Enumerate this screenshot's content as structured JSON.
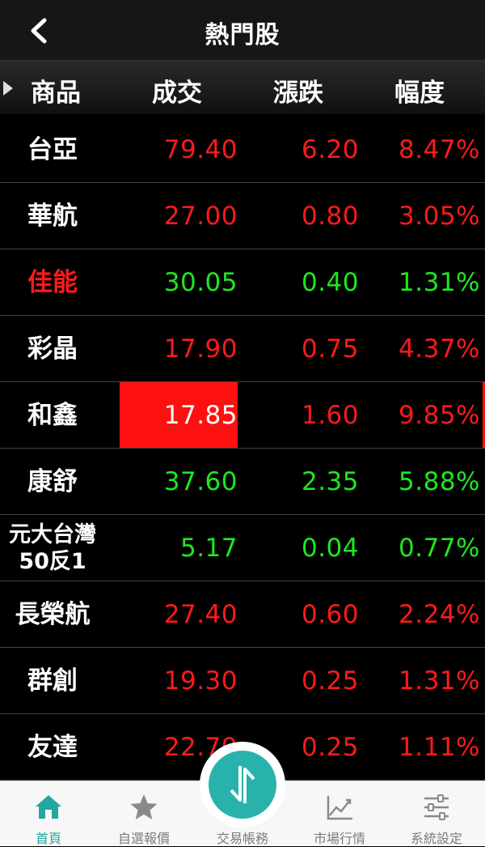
{
  "nav": {
    "title": "熱門股"
  },
  "columns": {
    "name": "商品",
    "price": "成交",
    "change": "漲跌",
    "percent": "幅度"
  },
  "stocks": [
    {
      "name": "台亞",
      "price": "79.40",
      "change": "6.20",
      "percent": "8.47%",
      "color": "red"
    },
    {
      "name": "華航",
      "price": "27.00",
      "change": "0.80",
      "percent": "3.05%",
      "color": "red"
    },
    {
      "name": "佳能",
      "price": "30.05",
      "change": "0.40",
      "percent": "1.31%",
      "color": "green"
    },
    {
      "name": "彩晶",
      "price": "17.90",
      "change": "0.75",
      "percent": "4.37%",
      "color": "red"
    },
    {
      "name": "和鑫",
      "price": "17.85",
      "change": "1.60",
      "percent": "9.85%",
      "color": "red"
    },
    {
      "name": "康舒",
      "price": "37.60",
      "change": "2.35",
      "percent": "5.88%",
      "color": "green"
    },
    {
      "name": "元大台灣50反1",
      "price": "5.17",
      "change": "0.04",
      "percent": "0.77%",
      "color": "green"
    },
    {
      "name": "長榮航",
      "price": "27.40",
      "change": "0.60",
      "percent": "2.24%",
      "color": "red"
    },
    {
      "name": "群創",
      "price": "19.30",
      "change": "0.25",
      "percent": "1.31%",
      "color": "red"
    },
    {
      "name": "友達",
      "price": "22.70",
      "change": "0.25",
      "percent": "1.11%",
      "color": "red"
    }
  ],
  "tabs": [
    {
      "label": "首頁",
      "icon": "home-icon",
      "active": true
    },
    {
      "label": "自選報價",
      "icon": "star-icon",
      "active": false
    },
    {
      "label": "交易帳務",
      "icon": "transfer-arrows-icon",
      "active": false
    },
    {
      "label": "市場行情",
      "icon": "line-chart-icon",
      "active": false
    },
    {
      "label": "系統設定",
      "icon": "sliders-icon",
      "active": false
    }
  ],
  "colors": {
    "up": "#ff1a1a",
    "down": "#1ee81e",
    "accent": "#27b3ab",
    "highlight": "#ff1010"
  }
}
